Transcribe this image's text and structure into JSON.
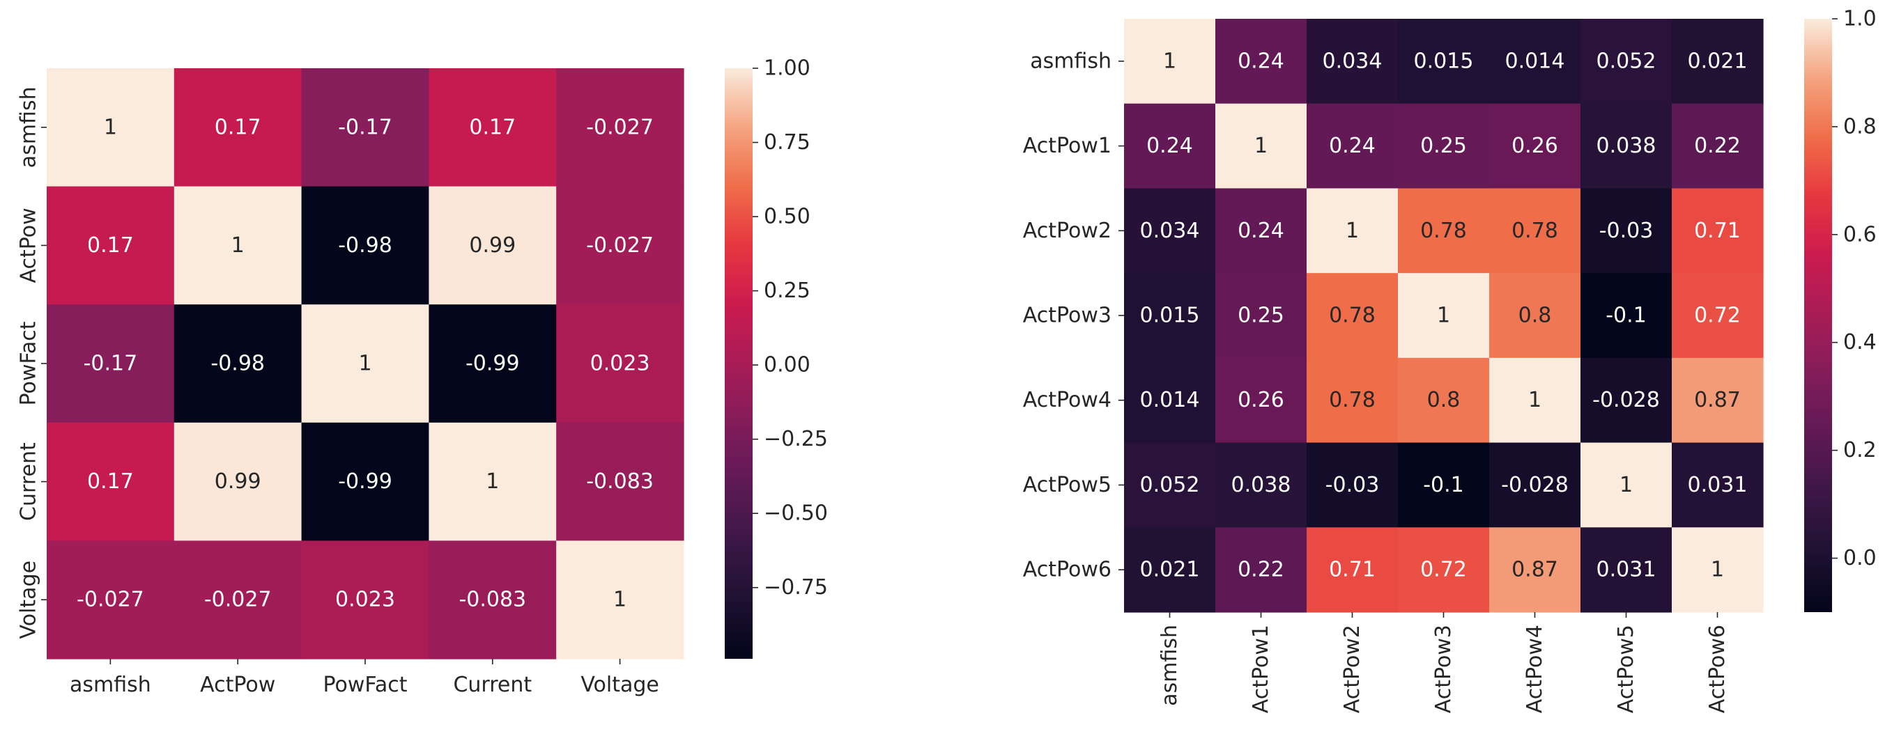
{
  "chart_data": [
    {
      "type": "heatmap",
      "title": "",
      "colormap": "rocket",
      "vmin": -0.99,
      "vmax": 1.0,
      "row_labels": [
        "asmfish",
        "ActPow",
        "PowFact",
        "Current",
        "Voltage"
      ],
      "col_labels": [
        "asmfish",
        "ActPow",
        "PowFact",
        "Current",
        "Voltage"
      ],
      "values": [
        [
          1,
          0.17,
          -0.17,
          0.17,
          -0.027
        ],
        [
          0.17,
          1,
          -0.98,
          0.99,
          -0.027
        ],
        [
          -0.17,
          -0.98,
          1,
          -0.99,
          0.023
        ],
        [
          0.17,
          0.99,
          -0.99,
          1,
          -0.083
        ],
        [
          -0.027,
          -0.027,
          0.023,
          -0.083,
          1
        ]
      ],
      "annotations": [
        [
          "1",
          "0.17",
          "-0.17",
          "0.17",
          "-0.027"
        ],
        [
          "0.17",
          "1",
          "-0.98",
          "0.99",
          "-0.027"
        ],
        [
          "-0.17",
          "-0.98",
          "1",
          "-0.99",
          "0.023"
        ],
        [
          "0.17",
          "0.99",
          "-0.99",
          "1",
          "-0.083"
        ],
        [
          "-0.027",
          "-0.027",
          "0.023",
          "-0.083",
          "1"
        ]
      ],
      "colorbar_ticks": [
        1.0,
        0.75,
        0.5,
        0.25,
        0.0,
        -0.25,
        -0.5,
        -0.75
      ],
      "colorbar_tick_labels": [
        "1.00",
        "0.75",
        "0.50",
        "0.25",
        "0.00",
        "−0.25",
        "−0.50",
        "−0.75"
      ],
      "x_label_rotation": "horizontal"
    },
    {
      "type": "heatmap",
      "title": "",
      "colormap": "rocket",
      "vmin": -0.1,
      "vmax": 1.0,
      "row_labels": [
        "asmfish",
        "ActPow1",
        "ActPow2",
        "ActPow3",
        "ActPow4",
        "ActPow5",
        "ActPow6"
      ],
      "col_labels": [
        "asmfish",
        "ActPow1",
        "ActPow2",
        "ActPow3",
        "ActPow4",
        "ActPow5",
        "ActPow6"
      ],
      "values": [
        [
          1,
          0.24,
          0.034,
          0.015,
          0.014,
          0.052,
          0.021
        ],
        [
          0.24,
          1,
          0.24,
          0.25,
          0.26,
          0.038,
          0.22
        ],
        [
          0.034,
          0.24,
          1,
          0.78,
          0.78,
          -0.03,
          0.71
        ],
        [
          0.015,
          0.25,
          0.78,
          1,
          0.8,
          -0.1,
          0.72
        ],
        [
          0.014,
          0.26,
          0.78,
          0.8,
          1,
          -0.028,
          0.87
        ],
        [
          0.052,
          0.038,
          -0.03,
          -0.1,
          -0.028,
          1,
          0.031
        ],
        [
          0.021,
          0.22,
          0.71,
          0.72,
          0.87,
          0.031,
          1
        ]
      ],
      "annotations": [
        [
          "1",
          "0.24",
          "0.034",
          "0.015",
          "0.014",
          "0.052",
          "0.021"
        ],
        [
          "0.24",
          "1",
          "0.24",
          "0.25",
          "0.26",
          "0.038",
          "0.22"
        ],
        [
          "0.034",
          "0.24",
          "1",
          "0.78",
          "0.78",
          "-0.03",
          "0.71"
        ],
        [
          "0.015",
          "0.25",
          "0.78",
          "1",
          "0.8",
          "-0.1",
          "0.72"
        ],
        [
          "0.014",
          "0.26",
          "0.78",
          "0.8",
          "1",
          "-0.028",
          "0.87"
        ],
        [
          "0.052",
          "0.038",
          "-0.03",
          "-0.1",
          "-0.028",
          "1",
          "0.031"
        ],
        [
          "0.021",
          "0.22",
          "0.71",
          "0.72",
          "0.87",
          "0.031",
          "1"
        ]
      ],
      "colorbar_ticks": [
        1.0,
        0.8,
        0.6,
        0.4,
        0.2,
        0.0
      ],
      "colorbar_tick_labels": [
        "1.0",
        "0.8",
        "0.6",
        "0.4",
        "0.2",
        "0.0"
      ],
      "x_label_rotation": "vertical"
    }
  ]
}
